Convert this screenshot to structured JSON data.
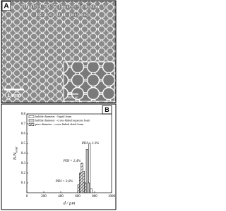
{
  "panel_a": {
    "label": "A",
    "title_line1": "2h after 40°C  (cross-linking) +",
    "title_line2": "18h at 60°C (drying)",
    "scale_bar": "1 mm",
    "inset_scale_bar": "500 µm"
  },
  "chart_data": {
    "type": "histogram",
    "panel_label": "B",
    "ylabel": {
      "main": "N/N",
      "sub": "total"
    },
    "xlabel": "d / µm",
    "xlim": [
      0,
      1000
    ],
    "xticks": [
      0,
      200,
      400,
      600,
      800,
      1000
    ],
    "ylim": [
      0,
      0.8
    ],
    "yticks": [
      0.1,
      0.2,
      0.3,
      0.4,
      0.5,
      0.6,
      0.7,
      0.8
    ],
    "legend": "upper left",
    "series": [
      {
        "name": "bubble diameter - liquid foam",
        "color": "#ffffff",
        "bins": [
          710,
          730,
          750,
          770
        ],
        "values": [
          0.05,
          0.5,
          0.04
        ]
      },
      {
        "name": "bubble diameter - cross-linked aqueous foam",
        "color": "#d4d4d4",
        "bins": [
          680,
          700,
          720,
          740
        ],
        "values": [
          0.06,
          0.44,
          0.1
        ]
      },
      {
        "name": "pore diameter - cross-linked dried foam",
        "color": "#444444",
        "hatch": true,
        "bins": [
          600,
          620,
          640,
          660,
          680,
          700
        ],
        "values": [
          0.08,
          0.2,
          0.3,
          0.22,
          0.1
        ]
      }
    ],
    "annotations": [
      "PDI = 3.3%",
      "PDI = 2.4%",
      "PDI = 3.6%"
    ]
  }
}
